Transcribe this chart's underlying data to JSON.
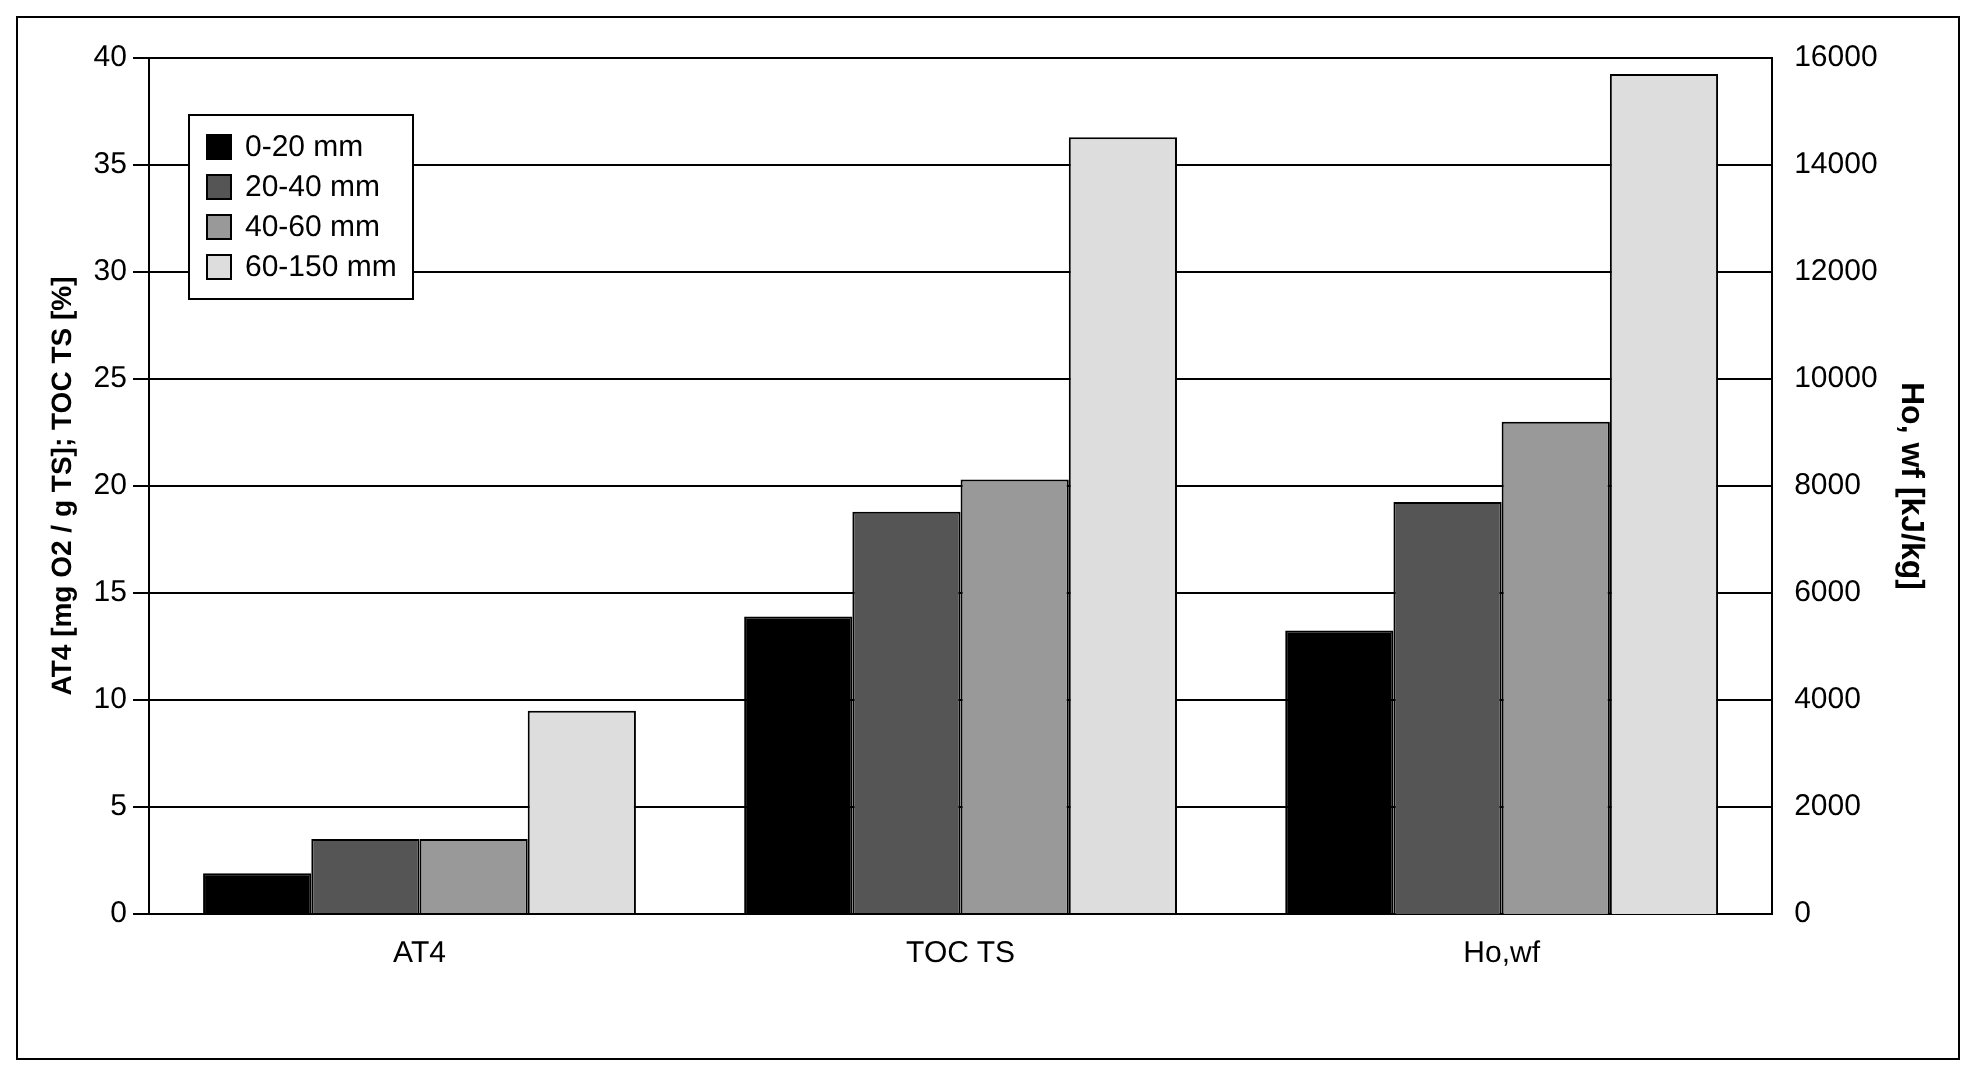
{
  "chart_data": {
    "type": "bar",
    "categories": [
      "AT4",
      "TOC TS",
      "Ho,wf"
    ],
    "series": [
      {
        "name": "0-20 mm",
        "color": "#000000",
        "values": [
          1.9,
          13.9,
          null
        ]
      },
      {
        "name": "20-40 mm",
        "color": "#555555",
        "values": [
          3.5,
          18.8,
          null
        ]
      },
      {
        "name": "40-60  mm",
        "color": "#999999",
        "values": [
          3.5,
          20.3,
          null
        ]
      },
      {
        "name": "60-150 mm",
        "color": "#dddddd",
        "values": [
          9.5,
          36.3,
          null
        ]
      },
      {
        "color": "#000000",
        "axis": "y2",
        "values": [
          null,
          null,
          5300
        ]
      },
      {
        "color": "#555555",
        "axis": "y2",
        "values": [
          null,
          null,
          7700
        ]
      },
      {
        "color": "#999999",
        "axis": "y2",
        "values": [
          null,
          null,
          9200
        ]
      },
      {
        "color": "#dddddd",
        "axis": "y2",
        "values": [
          null,
          null,
          15700
        ]
      }
    ],
    "ylabel": "AT4 [mg O2 / g TS]; TOC TS [%]",
    "y2label": "Ho, wf [kJ/kg]",
    "ylim": [
      0,
      40
    ],
    "yticks": [
      0,
      5,
      10,
      15,
      20,
      25,
      30,
      35,
      40
    ],
    "y2lim": [
      0,
      16000
    ],
    "y2ticks": [
      0,
      2000,
      4000,
      6000,
      8000,
      10000,
      12000,
      14000,
      16000
    ],
    "grid": "y",
    "legend": "top left"
  }
}
